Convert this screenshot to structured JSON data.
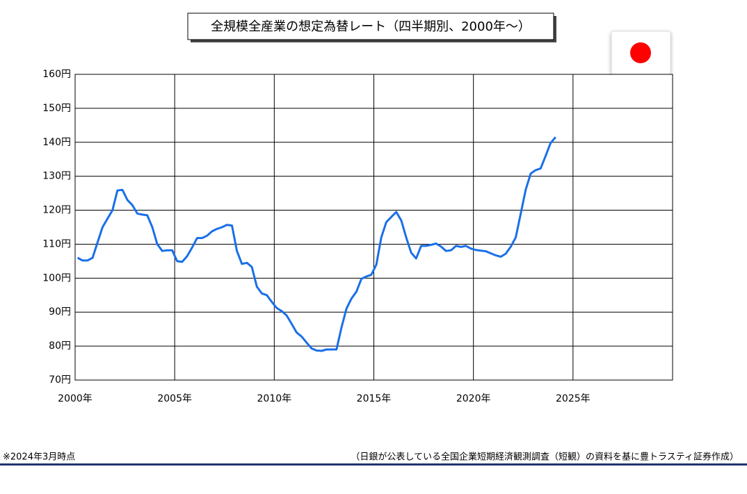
{
  "chart_data": {
    "type": "line",
    "title": "全規模全産業の想定為替レート（四半期別、2000年～）",
    "note": "※2024年3月時点",
    "source": "（日銀が公表している全国企業短期経済観測調査（短観）の資料を基に豊トラスティ証券作成）",
    "color": "#1a6fe8",
    "x": [
      2000.125,
      2000.375,
      2000.625,
      2000.875,
      2001.125,
      2001.375,
      2001.625,
      2001.875,
      2002.125,
      2002.375,
      2002.625,
      2002.875,
      2003.125,
      2003.375,
      2003.625,
      2003.875,
      2004.125,
      2004.375,
      2004.625,
      2004.875,
      2005.125,
      2005.375,
      2005.625,
      2005.875,
      2006.125,
      2006.375,
      2006.625,
      2006.875,
      2007.125,
      2007.375,
      2007.625,
      2007.875,
      2008.125,
      2008.375,
      2008.625,
      2008.875,
      2009.125,
      2009.375,
      2009.625,
      2009.875,
      2010.125,
      2010.375,
      2010.625,
      2010.875,
      2011.125,
      2011.375,
      2011.625,
      2011.875,
      2012.125,
      2012.375,
      2012.625,
      2012.875,
      2013.125,
      2013.375,
      2013.625,
      2013.875,
      2014.125,
      2014.375,
      2014.625,
      2014.875,
      2015.125,
      2015.375,
      2015.625,
      2015.875,
      2016.125,
      2016.375,
      2016.625,
      2016.875,
      2017.125,
      2017.375,
      2017.625,
      2017.875,
      2018.125,
      2018.375,
      2018.625,
      2018.875,
      2019.125,
      2019.375,
      2019.625,
      2019.875,
      2020.125,
      2020.375,
      2020.625,
      2020.875,
      2021.125,
      2021.375,
      2021.625,
      2021.875,
      2022.125,
      2022.375,
      2022.625,
      2022.875,
      2023.125,
      2023.375,
      2023.625,
      2023.875,
      2024.125
    ],
    "values": [
      106,
      105.2,
      105.2,
      106,
      110.5,
      115,
      117.5,
      120,
      125.8,
      126,
      123,
      121.5,
      119,
      118.7,
      118.5,
      115,
      110,
      108,
      108.2,
      108.2,
      105,
      104.8,
      106.5,
      109,
      111.8,
      111.8,
      112.5,
      113.8,
      114.5,
      115,
      115.7,
      115.5,
      108,
      104.2,
      104.5,
      103.3,
      97.5,
      95.5,
      95,
      93,
      91.2,
      90.3,
      89,
      86.5,
      84,
      82.8,
      81,
      79.3,
      78.7,
      78.6,
      79,
      79,
      79,
      85.5,
      91,
      94,
      96,
      99.8,
      100.5,
      101,
      104,
      112,
      116.5,
      118,
      119.5,
      117,
      112,
      107.5,
      105.8,
      109.5,
      109.5,
      109.8,
      110.2,
      109.3,
      108,
      108.2,
      109.5,
      109.2,
      109.5,
      108.7,
      108.3,
      108.1,
      107.9,
      107.3,
      106.7,
      106.3,
      107.2,
      109.3,
      112,
      119,
      126,
      130.8,
      131.8,
      132.3,
      136,
      139.8,
      141.5
    ],
    "xlim": [
      2000,
      2030
    ],
    "xticks": [
      {
        "value": 2000,
        "label": "2000年"
      },
      {
        "value": 2005,
        "label": "2005年"
      },
      {
        "value": 2010,
        "label": "2010年"
      },
      {
        "value": 2015,
        "label": "2015年"
      },
      {
        "value": 2020,
        "label": "2020年"
      },
      {
        "value": 2025,
        "label": "2025年"
      }
    ],
    "ylim": [
      70,
      160
    ],
    "yticks": [
      {
        "value": 70,
        "label": "70円"
      },
      {
        "value": 80,
        "label": "80円"
      },
      {
        "value": 90,
        "label": "90円"
      },
      {
        "value": 100,
        "label": "100円"
      },
      {
        "value": 110,
        "label": "110円"
      },
      {
        "value": 120,
        "label": "120円"
      },
      {
        "value": 130,
        "label": "130円"
      },
      {
        "value": 140,
        "label": "140円"
      },
      {
        "value": 150,
        "label": "150円"
      },
      {
        "value": 160,
        "label": "160円"
      }
    ],
    "grid": true
  }
}
